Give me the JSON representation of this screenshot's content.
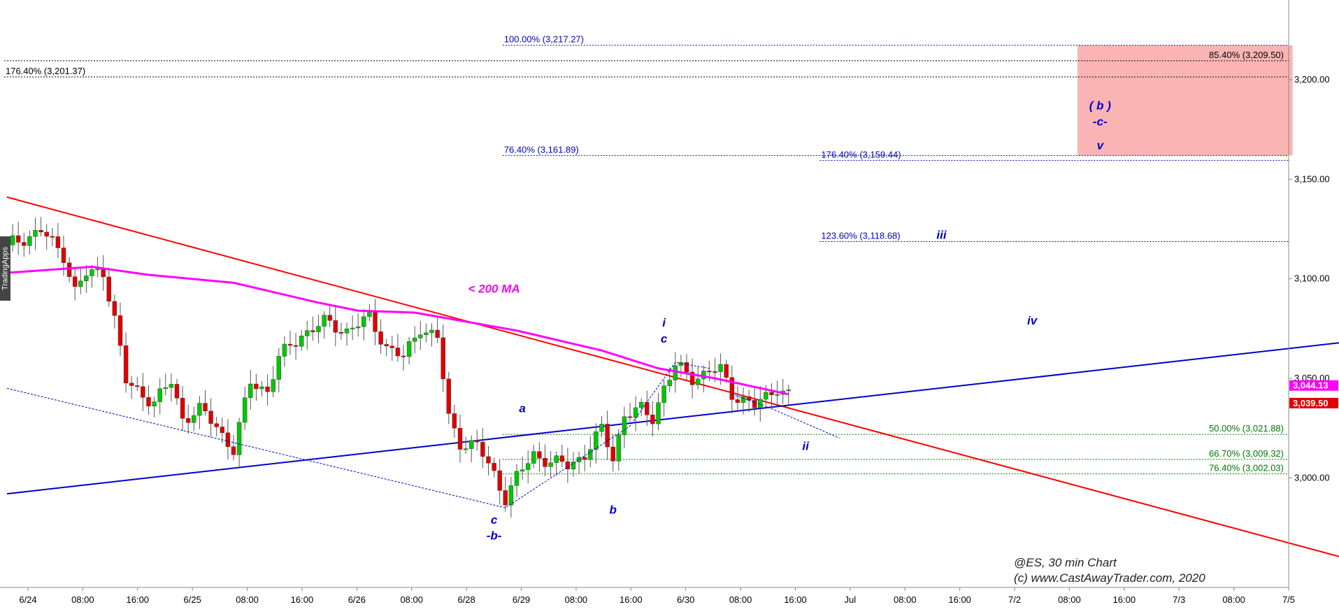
{
  "side_tab": "TradingApps",
  "colors": {
    "background": "#ffffff",
    "up_candle": "#00c800",
    "down_candle": "#e00000",
    "ma_line": "#ff00ff",
    "red_trend": "#ff0000",
    "blue_trend": "#0000cc",
    "fib_blue": "#0000cc",
    "fib_green": "#007700",
    "target_zone": "#fbb4b4"
  },
  "chart_data": {
    "type": "candlestick",
    "symbol": "@ES",
    "watermark": [
      "@ES, 30 min Chart",
      "(c) www.CastAwayTrader.com, 2020"
    ],
    "x_ticks": [
      "6/24",
      "08:00",
      "16:00",
      "6/25",
      "08:00",
      "16:00",
      "6/26",
      "08:00",
      "6/28",
      "6/29",
      "08:00",
      "16:00",
      "6/30",
      "08:00",
      "16:00",
      "Jul",
      "08:00",
      "16:00",
      "7/2",
      "08:00",
      "16:00",
      "7/3",
      "08:00",
      "7/5"
    ],
    "y_ticks": [
      "3,000.00",
      "3,050.00",
      "3,100.00",
      "3,150.00",
      "3,200.00"
    ],
    "y_tick_values": [
      3000,
      3050,
      3100,
      3150,
      3200
    ],
    "ylim": [
      2945,
      3240
    ],
    "price_tags": [
      {
        "text": "3,044.13",
        "value": 3044.13,
        "color": "#ff00ff"
      },
      {
        "text": "3,039.50",
        "value": 3039.5,
        "color": "#e00000"
      }
    ],
    "price_path_anchors": [
      [
        0,
        3117
      ],
      [
        6,
        3124
      ],
      [
        10,
        3112
      ],
      [
        12,
        3094
      ],
      [
        14,
        3102
      ],
      [
        17,
        3104
      ],
      [
        19,
        3080
      ],
      [
        21,
        3048
      ],
      [
        23,
        3044
      ],
      [
        26,
        3038
      ],
      [
        29,
        3048
      ],
      [
        31,
        3030
      ],
      [
        34,
        3034
      ],
      [
        37,
        3026
      ],
      [
        40,
        3014
      ],
      [
        43,
        3048
      ],
      [
        46,
        3044
      ],
      [
        48,
        3060
      ],
      [
        52,
        3072
      ],
      [
        56,
        3078
      ],
      [
        60,
        3074
      ],
      [
        64,
        3080
      ],
      [
        67,
        3066
      ],
      [
        70,
        3060
      ],
      [
        73,
        3076
      ],
      [
        76,
        3070
      ],
      [
        78,
        3030
      ],
      [
        80,
        3018
      ],
      [
        83,
        3016
      ],
      [
        86,
        3002
      ],
      [
        88,
        2990
      ],
      [
        90,
        3000
      ],
      [
        93,
        3012
      ],
      [
        96,
        3008
      ],
      [
        99,
        3006
      ],
      [
        102,
        3012
      ],
      [
        105,
        3024
      ],
      [
        107,
        3010
      ],
      [
        109,
        3032
      ],
      [
        112,
        3034
      ],
      [
        114,
        3030
      ],
      [
        116,
        3046
      ],
      [
        118,
        3056
      ],
      [
        121,
        3050
      ],
      [
        124,
        3054
      ],
      [
        126,
        3054
      ],
      [
        128,
        3042
      ],
      [
        130,
        3040
      ],
      [
        132,
        3036
      ],
      [
        134,
        3040
      ],
      [
        136,
        3046
      ],
      [
        138,
        3042
      ]
    ],
    "ma_200": [
      [
        0,
        3103
      ],
      [
        15,
        3106
      ],
      [
        25,
        3102
      ],
      [
        40,
        3098
      ],
      [
        55,
        3088
      ],
      [
        62,
        3084
      ],
      [
        72,
        3083
      ],
      [
        90,
        3074
      ],
      [
        105,
        3064
      ],
      [
        115,
        3055
      ],
      [
        125,
        3050
      ],
      [
        138,
        3042
      ]
    ],
    "trendlines": [
      {
        "name": "red",
        "from": [
          0,
          3141
        ],
        "to": [
          245,
          2953
        ]
      },
      {
        "name": "blue",
        "from": [
          0,
          2992
        ],
        "to": [
          245,
          3071
        ]
      }
    ],
    "fib_levels": [
      {
        "label": "100.00% (3,217.27)",
        "value": 3217.27,
        "color": "#0000cc",
        "x_start": 88
      },
      {
        "label": "176.40% (3,201.37)",
        "value": 3201.37,
        "color": "#000000",
        "x_start": 0
      },
      {
        "label": "85.40% (3,209.50)",
        "value": 3209.5,
        "color": "#000000",
        "x_start": 0
      },
      {
        "label": "76.40% (3,161.89)",
        "value": 3161.89,
        "color": "#0000cc",
        "x_start": 88
      },
      {
        "label": "176.40% (3,159.44)",
        "value": 3159.44,
        "color": "#0000cc",
        "x_start": 144
      },
      {
        "label": "123.60% (3,118.68)",
        "value": 3118.68,
        "color": "#0000cc",
        "x_start": 144
      },
      {
        "label": "50.00% (3,021.88)",
        "value": 3021.88,
        "color": "#007700",
        "x_start": 88
      },
      {
        "label": "66.70% (3,009.32)",
        "value": 3009.32,
        "color": "#007700",
        "x_start": 88
      },
      {
        "label": "76.40% (3,002.03)",
        "value": 3002.03,
        "color": "#007700",
        "x_start": 88
      }
    ],
    "target_zone": {
      "x_from": 189,
      "x_to": 227,
      "y_from": 3161.89,
      "y_to": 3217.27
    },
    "annotations": [
      {
        "text": "< 200 MA",
        "x": 86,
        "y": 3093,
        "color": "#ff00ff"
      },
      {
        "text": "a",
        "x": 91,
        "y": 3033,
        "color": "#0000cc"
      },
      {
        "text": "b",
        "x": 107,
        "y": 2982,
        "color": "#0000cc"
      },
      {
        "text": "c",
        "x": 86,
        "y": 2977,
        "color": "#0000cc"
      },
      {
        "text": "-b-",
        "x": 86,
        "y": 2969,
        "color": "#0000cc"
      },
      {
        "text": "i",
        "x": 116,
        "y": 3076,
        "color": "#0000cc"
      },
      {
        "text": "c",
        "x": 116,
        "y": 3068,
        "color": "#0000cc"
      },
      {
        "text": "ii",
        "x": 141,
        "y": 3014,
        "color": "#0000cc"
      },
      {
        "text": "iii",
        "x": 165,
        "y": 3120,
        "color": "#0000cc"
      },
      {
        "text": "iv",
        "x": 181,
        "y": 3077,
        "color": "#0000cc"
      },
      {
        "text": "( b )",
        "x": 193,
        "y": 3185,
        "color": "#0000cc"
      },
      {
        "text": "-c-",
        "x": 193,
        "y": 3177,
        "color": "#0000cc"
      },
      {
        "text": "v",
        "x": 193,
        "y": 3165,
        "color": "#0000cc"
      }
    ],
    "wave_dotted_lines": [
      {
        "points": [
          [
            0,
            3045
          ],
          [
            88,
            2985
          ],
          [
            110,
            3026
          ],
          [
            118,
            3058
          ],
          [
            124,
            3055
          ]
        ]
      },
      {
        "points": [
          [
            128,
            3042
          ],
          [
            134,
            3036
          ],
          [
            147,
            3020
          ]
        ]
      }
    ]
  }
}
